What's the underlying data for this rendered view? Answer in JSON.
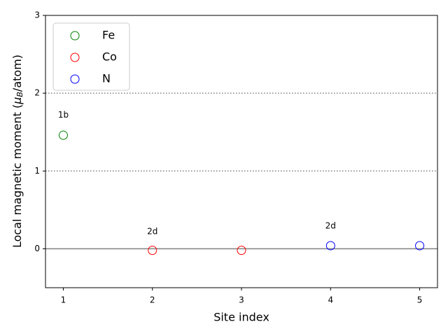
{
  "chart_data": {
    "type": "scatter",
    "xlabel": "Site index",
    "ylabel": {
      "prefix": "Local magnetic moment (",
      "symbol": "μ",
      "subscript": "B",
      "suffix": "/atom)"
    },
    "xlim": [
      0.8,
      5.2
    ],
    "xticks": [
      1,
      2,
      3,
      4,
      5
    ],
    "ylim": [
      -0.5,
      3
    ],
    "yticks": [
      0,
      1,
      2,
      3
    ],
    "series": [
      {
        "name": "Fe",
        "color": "green",
        "x": [
          1
        ],
        "values": [
          1.46
        ]
      },
      {
        "name": "Co",
        "color": "red",
        "x": [
          2,
          3
        ],
        "values": [
          -0.02,
          -0.02
        ]
      },
      {
        "name": "N",
        "color": "blue",
        "x": [
          4,
          5
        ],
        "values": [
          0.04,
          0.04
        ]
      }
    ],
    "hlines": [
      {
        "y": 0,
        "style": "solid"
      },
      {
        "y": 1,
        "style": "dotted"
      },
      {
        "y": 2,
        "style": "dotted"
      }
    ],
    "annotations": [
      {
        "text": "1b",
        "x": 1,
        "y": 1.72
      },
      {
        "text": "2d",
        "x": 2,
        "y": 0.22
      },
      {
        "text": "2d",
        "x": 4,
        "y": 0.29
      }
    ],
    "legend": "upper left"
  }
}
